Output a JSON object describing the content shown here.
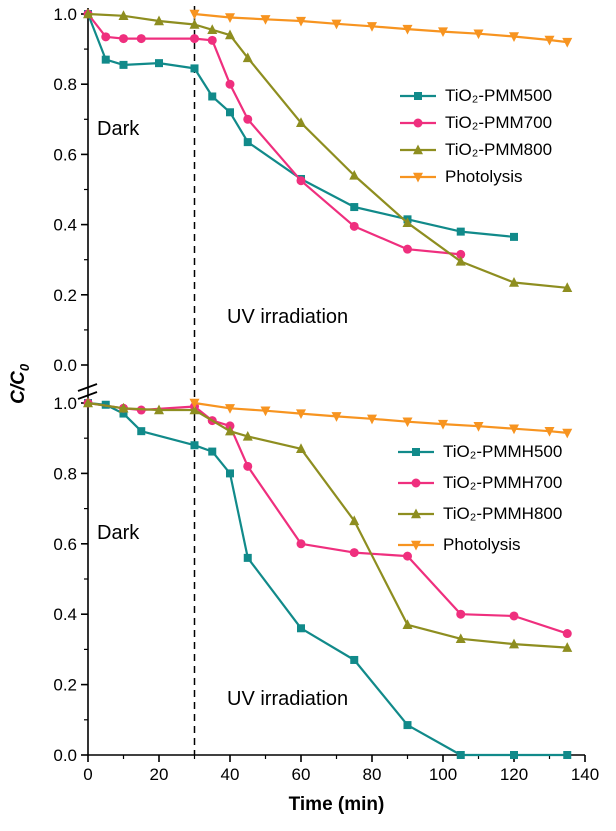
{
  "figure": {
    "background": "#ffffff",
    "xlabel": "Time (min)",
    "ylabel_main": "C/C",
    "ylabel_sub": "0",
    "dark_label": "Dark",
    "uv_label": "UV irradiation"
  },
  "axis": {
    "x_range": [
      0,
      140
    ],
    "x_major_ticks": [
      "0",
      "20",
      "40",
      "60",
      "80",
      "100",
      "120",
      "140"
    ],
    "x_minor_step": 10,
    "y_major_ticks": [
      "0.0",
      "0.2",
      "0.4",
      "0.6",
      "0.8",
      "1.0"
    ],
    "y_minor_step": 0.1,
    "dashed_line_x": 30,
    "axis_color": "#000000"
  },
  "chart_data": [
    {
      "type": "line",
      "panel": "top",
      "title": "",
      "xlabel": "Time (min)",
      "ylabel": "C/C0",
      "xlim": [
        0,
        140
      ],
      "ylim": [
        0.0,
        1.0
      ],
      "grid": false,
      "legend_position": "upper right",
      "series": [
        {
          "name": "TiO₂-PMM500",
          "marker": "square",
          "color": "#118a8a",
          "x": [
            0,
            5,
            10,
            20,
            30,
            35,
            40,
            45,
            60,
            75,
            90,
            105,
            120
          ],
          "y": [
            1.0,
            0.87,
            0.855,
            0.86,
            0.845,
            0.765,
            0.72,
            0.635,
            0.53,
            0.45,
            0.415,
            0.38,
            0.365
          ]
        },
        {
          "name": "TiO₂-PMM700",
          "marker": "circle",
          "color": "#ef2f7e",
          "x": [
            0,
            5,
            10,
            15,
            30,
            35,
            40,
            45,
            60,
            75,
            90,
            105
          ],
          "y": [
            1.0,
            0.935,
            0.93,
            0.93,
            0.93,
            0.925,
            0.8,
            0.7,
            0.525,
            0.395,
            0.33,
            0.315
          ]
        },
        {
          "name": "TiO₂-PMM800",
          "marker": "triangle-up",
          "color": "#8e8e20",
          "x": [
            0,
            10,
            20,
            30,
            35,
            40,
            45,
            60,
            75,
            90,
            105,
            120,
            135
          ],
          "y": [
            1.0,
            0.995,
            0.98,
            0.97,
            0.955,
            0.94,
            0.875,
            0.69,
            0.54,
            0.405,
            0.295,
            0.235,
            0.22
          ]
        },
        {
          "name": "Photolysis",
          "marker": "triangle-down",
          "color": "#f79420",
          "x": [
            30,
            40,
            50,
            60,
            70,
            80,
            90,
            100,
            110,
            120,
            130,
            135
          ],
          "y": [
            1.0,
            0.99,
            0.985,
            0.98,
            0.972,
            0.965,
            0.957,
            0.95,
            0.944,
            0.936,
            0.926,
            0.92
          ]
        }
      ]
    },
    {
      "type": "line",
      "panel": "bottom",
      "title": "",
      "xlabel": "Time (min)",
      "ylabel": "C/C0",
      "xlim": [
        0,
        140
      ],
      "ylim": [
        0.0,
        1.0
      ],
      "grid": false,
      "legend_position": "right",
      "series": [
        {
          "name": "TiO₂-PMMH500",
          "marker": "square",
          "color": "#118a8a",
          "x": [
            0,
            5,
            10,
            15,
            30,
            35,
            40,
            45,
            60,
            75,
            90,
            105,
            120,
            135
          ],
          "y": [
            1.0,
            0.995,
            0.97,
            0.92,
            0.88,
            0.862,
            0.8,
            0.56,
            0.36,
            0.27,
            0.085,
            0.0,
            0.0,
            0.0
          ]
        },
        {
          "name": "TiO₂-PMMH700",
          "marker": "circle",
          "color": "#ef2f7e",
          "x": [
            0,
            10,
            15,
            30,
            35,
            40,
            45,
            60,
            75,
            90,
            105,
            120,
            135
          ],
          "y": [
            1.0,
            0.985,
            0.98,
            0.99,
            0.95,
            0.935,
            0.82,
            0.6,
            0.575,
            0.565,
            0.4,
            0.395,
            0.345
          ]
        },
        {
          "name": "TiO₂-PMMH800",
          "marker": "triangle-up",
          "color": "#8e8e20",
          "x": [
            0,
            10,
            20,
            30,
            40,
            45,
            60,
            75,
            90,
            105,
            120,
            135
          ],
          "y": [
            1.0,
            0.985,
            0.98,
            0.98,
            0.92,
            0.905,
            0.87,
            0.665,
            0.37,
            0.33,
            0.315,
            0.305
          ]
        },
        {
          "name": "Photolysis",
          "marker": "triangle-down",
          "color": "#f79420",
          "x": [
            30,
            40,
            50,
            60,
            70,
            80,
            90,
            100,
            110,
            120,
            130,
            135
          ],
          "y": [
            1.0,
            0.985,
            0.978,
            0.97,
            0.962,
            0.955,
            0.947,
            0.94,
            0.934,
            0.927,
            0.92,
            0.915
          ]
        }
      ]
    }
  ]
}
